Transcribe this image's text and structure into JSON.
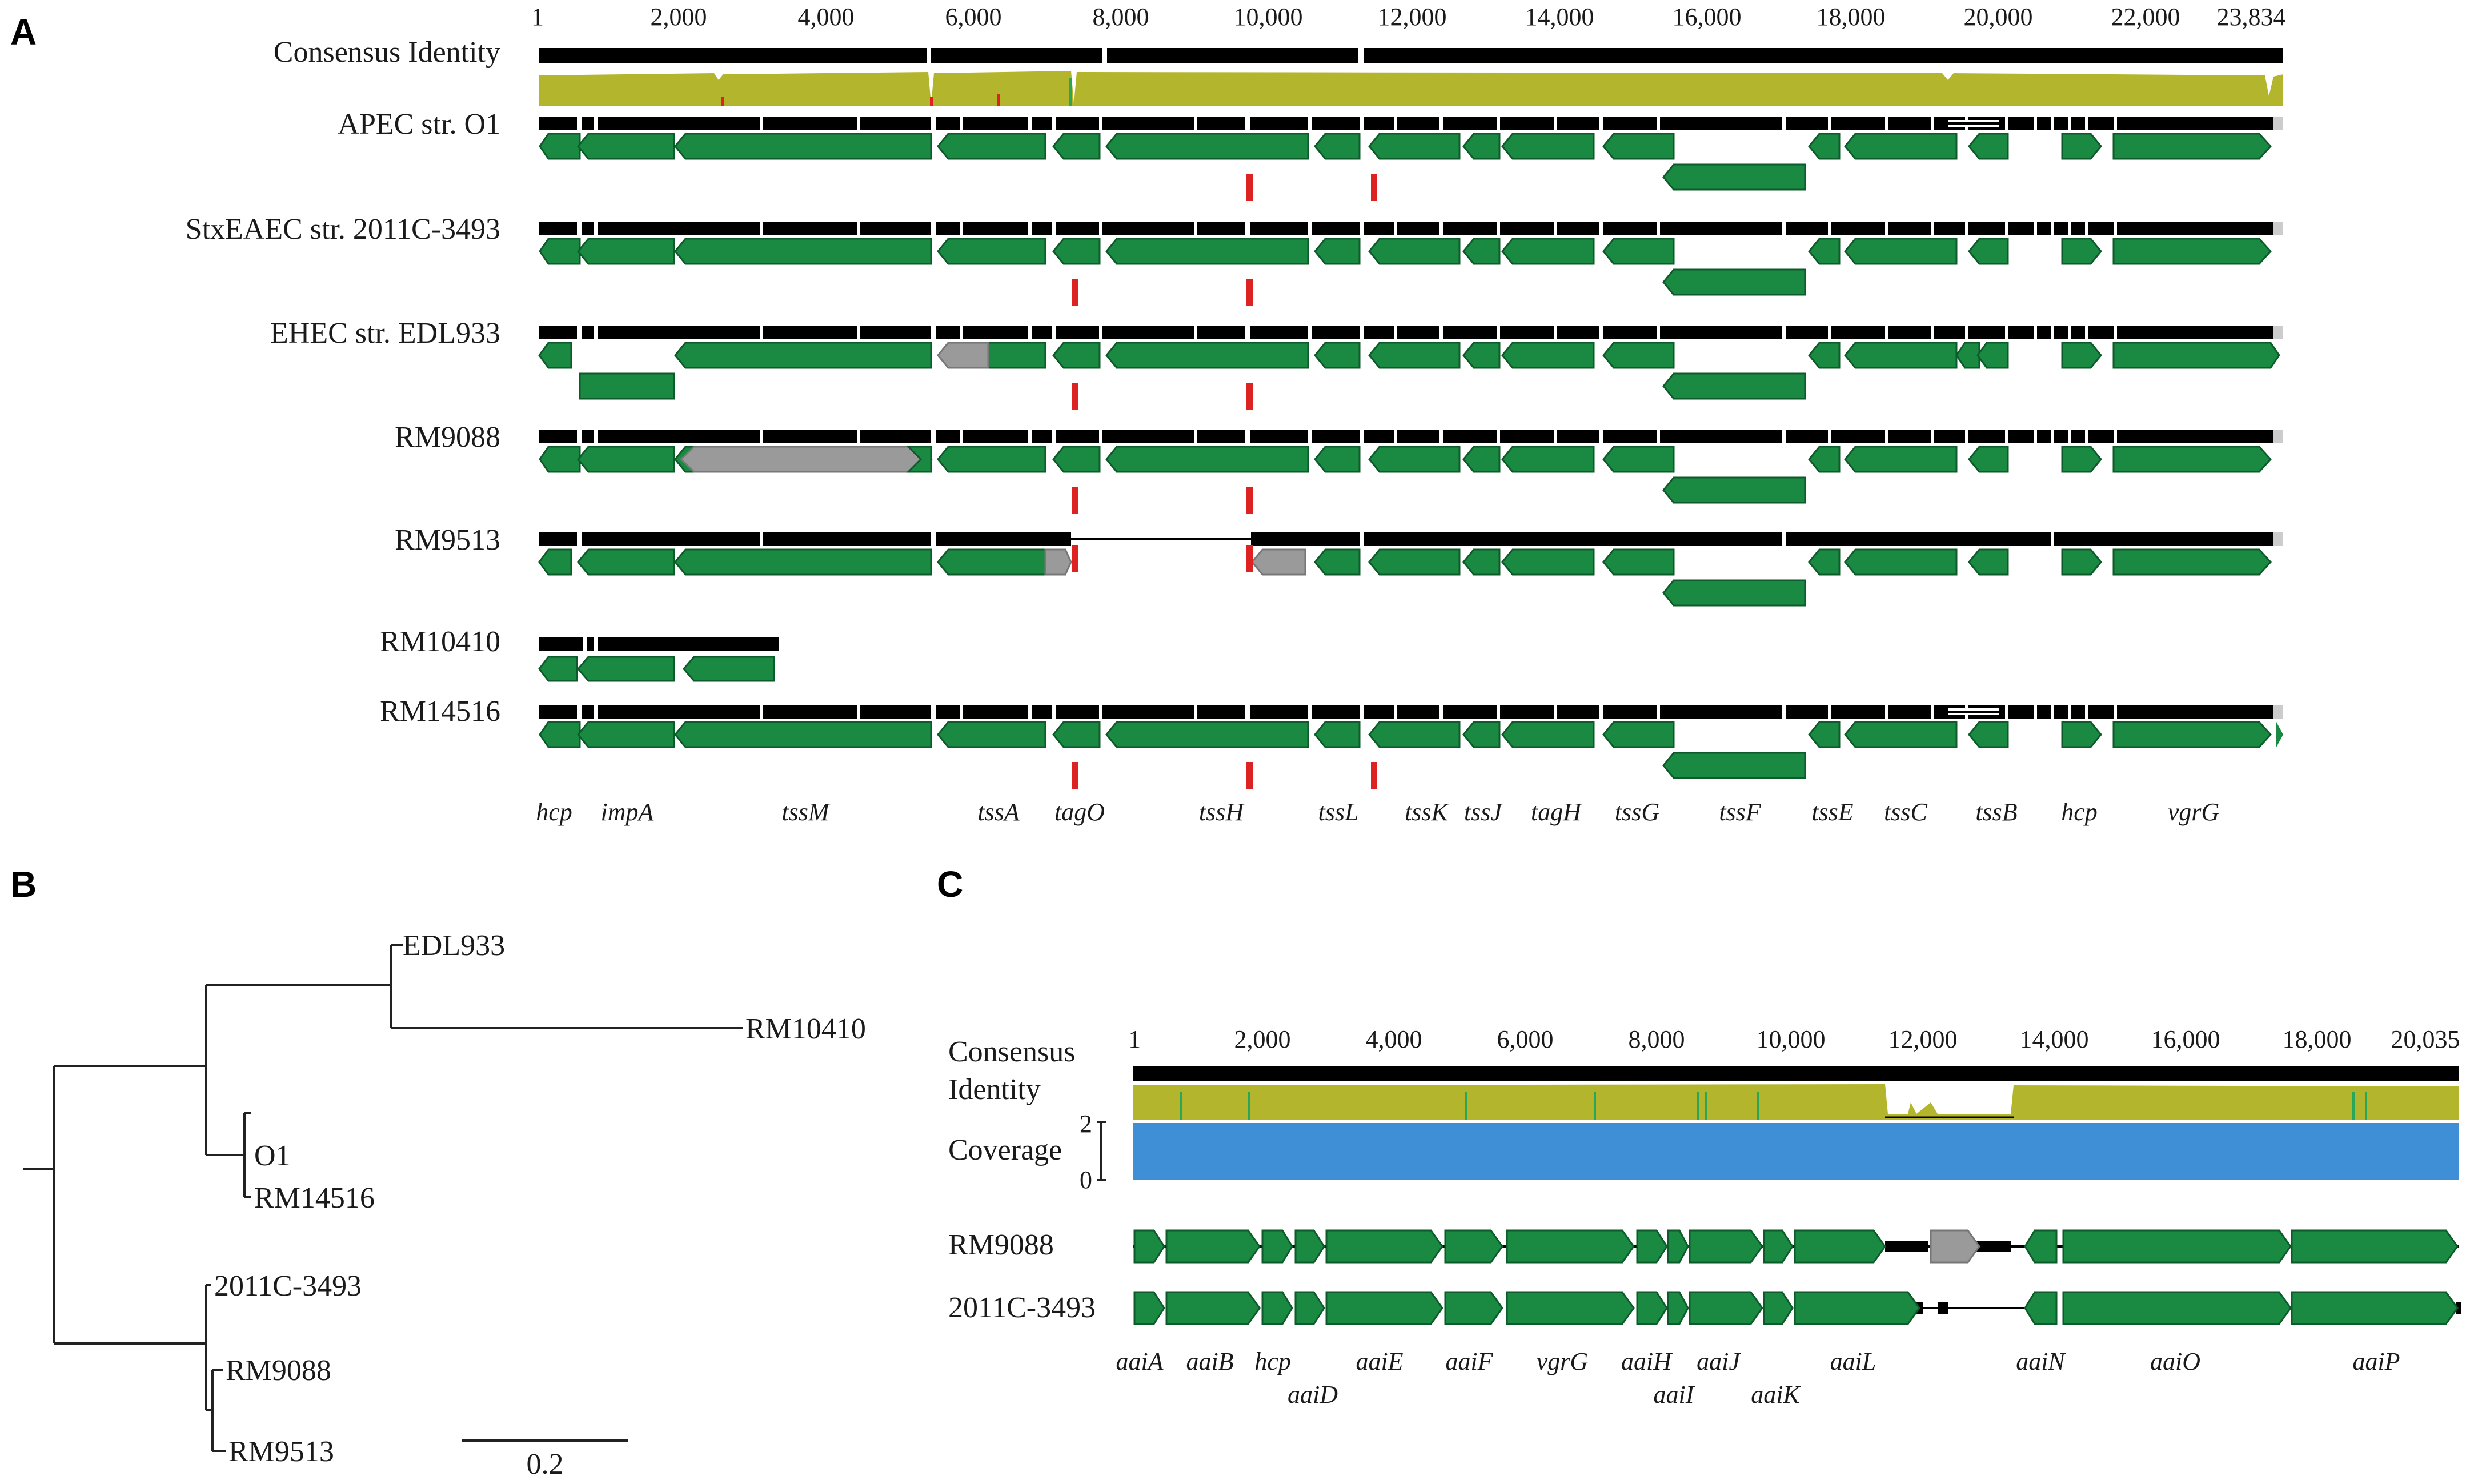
{
  "panels": {
    "a": "A",
    "b": "B",
    "c": "C"
  },
  "colors": {
    "gene": "#1a8a42",
    "gene_stroke": "#0d5a2a",
    "gray_gene": "#9a9a9a",
    "identity": "#b3b52c",
    "coverage": "#3f8fd6",
    "snp": "#dd2222",
    "black": "#000000"
  },
  "panel_a": {
    "axis": {
      "ticks": [
        "1",
        "2,000",
        "4,000",
        "6,000",
        "8,000",
        "10,000",
        "12,000",
        "14,000",
        "16,000",
        "18,000",
        "20,000",
        "22,000",
        "23,834"
      ],
      "max": 23834
    },
    "consensus_label": "Consensus Identity",
    "rows": [
      {
        "label": "APEC str. O1"
      },
      {
        "label": "StxEAEC str. 2011C-3493"
      },
      {
        "label": "EHEC str. EDL933"
      },
      {
        "label": "RM9088"
      },
      {
        "label": "RM9513"
      },
      {
        "label": "RM10410"
      },
      {
        "label": "RM14516"
      }
    ],
    "genes": [
      "hcp",
      "impA",
      "tssM",
      "tssA",
      "tagO",
      "tssH",
      "tssL",
      "tssK",
      "tssJ",
      "tagH",
      "tssG",
      "tssF",
      "tssE",
      "tssC",
      "tssB",
      "hcp",
      "vgrG"
    ]
  },
  "panel_b": {
    "leaves": [
      "EDL933",
      "RM10410",
      "O1",
      "RM14516",
      "2011C-3493",
      "RM9088",
      "RM9513"
    ],
    "scale": "0.2"
  },
  "panel_c": {
    "axis": {
      "ticks": [
        "1",
        "2,000",
        "4,000",
        "6,000",
        "8,000",
        "10,000",
        "12,000",
        "14,000",
        "16,000",
        "18,000",
        "20,035"
      ],
      "max": 20035
    },
    "consensus_label_1": "Consensus",
    "consensus_label_2": "Identity",
    "coverage_label": "Coverage",
    "coverage_max": "2",
    "coverage_min": "0",
    "rows": [
      {
        "label": "RM9088"
      },
      {
        "label": "2011C-3493"
      }
    ],
    "genes_top": [
      "aaiA",
      "aaiB",
      "hcp",
      "aaiE",
      "aaiF",
      "vgrG",
      "aaiH",
      "aaiJ",
      "aaiL",
      "aaiN",
      "aaiO",
      "aaiP"
    ],
    "genes_bottom": [
      "aaiD",
      "aaiI",
      "aaiK"
    ]
  }
}
